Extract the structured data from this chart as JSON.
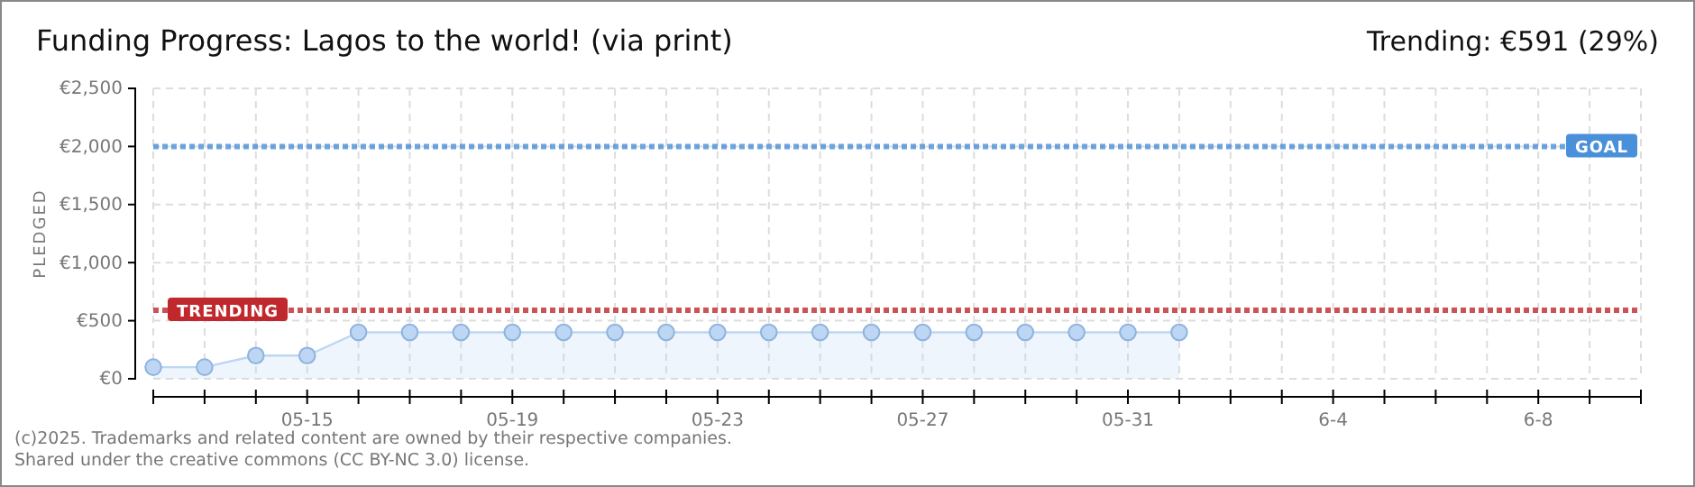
{
  "chart_data": {
    "type": "area",
    "title": "Funding Progress: Lagos to the world! (via print)",
    "subtitle": "Trending: €591 (29%)",
    "ylabel": "PLEDGED",
    "x": [
      "--05-12",
      "--05-13",
      "--05-14",
      "--05-15",
      "--05-16",
      "--05-17",
      "--05-18",
      "--05-19",
      "--05-20",
      "--05-21",
      "--05-22",
      "--05-23",
      "--05-24",
      "--05-25",
      "--05-26",
      "--05-27",
      "--05-28",
      "--05-29",
      "--05-30",
      "--05-31",
      "--06-01"
    ],
    "series": [
      {
        "color": "#bcd6f4",
        "values": [
          100,
          100,
          200,
          200,
          400,
          400,
          400,
          400,
          400,
          400,
          400,
          400,
          400,
          400,
          400,
          400,
          400,
          400,
          400,
          400,
          400
        ]
      }
    ],
    "xlim": [
      "--05-12",
      "--06-10"
    ],
    "xticks": [
      {
        "value": "--05-12",
        "label": null
      },
      {
        "value": "--05-13",
        "label": null
      },
      {
        "value": "--05-14",
        "label": null
      },
      {
        "value": "--05-15",
        "label": "05-15"
      },
      {
        "value": "--05-16",
        "label": null
      },
      {
        "value": "--05-17",
        "label": null
      },
      {
        "value": "--05-18",
        "label": null
      },
      {
        "value": "--05-19",
        "label": "05-19"
      },
      {
        "value": "--05-20",
        "label": null
      },
      {
        "value": "--05-21",
        "label": null
      },
      {
        "value": "--05-22",
        "label": null
      },
      {
        "value": "--05-23",
        "label": "05-23"
      },
      {
        "value": "--05-24",
        "label": null
      },
      {
        "value": "--05-25",
        "label": null
      },
      {
        "value": "--05-26",
        "label": null
      },
      {
        "value": "--05-27",
        "label": "05-27"
      },
      {
        "value": "--05-28",
        "label": null
      },
      {
        "value": "--05-29",
        "label": null
      },
      {
        "value": "--05-30",
        "label": null
      },
      {
        "value": "--05-31",
        "label": "05-31"
      },
      {
        "value": "--06-01",
        "label": null
      },
      {
        "value": "--06-02",
        "label": null
      },
      {
        "value": "--06-03",
        "label": null
      },
      {
        "value": "--06-04",
        "label": "6-4"
      },
      {
        "value": "--06-05",
        "label": null
      },
      {
        "value": "--06-06",
        "label": null
      },
      {
        "value": "--06-07",
        "label": null
      },
      {
        "value": "--06-08",
        "label": "6-8"
      },
      {
        "value": "--06-09",
        "label": null
      },
      {
        "value": "--06-10",
        "label": null
      }
    ],
    "ylim": [
      0,
      2500
    ],
    "yticks": [
      {
        "value": 0,
        "label": "€0"
      },
      {
        "value": 500,
        "label": "€500"
      },
      {
        "value": 1000,
        "label": "€1,000"
      },
      {
        "value": 1500,
        "label": "€1,500"
      },
      {
        "value": 2000,
        "label": "€2,000"
      },
      {
        "value": 2500,
        "label": "€2,500"
      }
    ],
    "grid": true,
    "marker": "circle",
    "ref_lines": [
      {
        "axis": "y",
        "value": 2000,
        "label": "GOAL",
        "color": "#4a8fd9",
        "line_style": "dotted"
      },
      {
        "axis": "y",
        "value": 591,
        "label": "TRENDING",
        "color": "#c0282d",
        "line_style": "dotted"
      }
    ],
    "annotations": [
      "(c)2025. Trademarks and related content are owned by their respective companies.",
      "Shared under the creative commons (CC BY-NC 3.0) license."
    ]
  }
}
